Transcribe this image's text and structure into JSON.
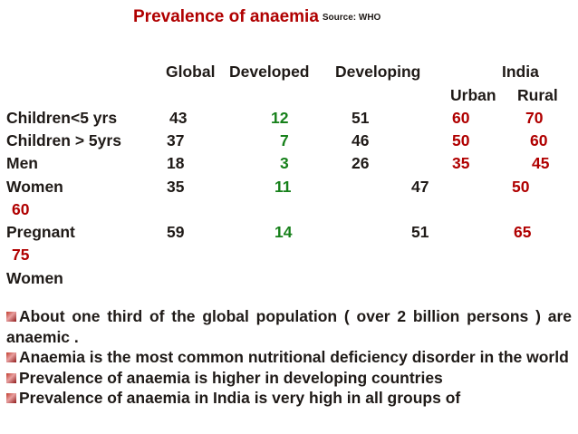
{
  "title": {
    "text": "Prevalence of anaemia",
    "source": "Source: WHO"
  },
  "headers": {
    "global": "Global",
    "developed": "Developed",
    "developing": "Developing",
    "india": "India",
    "urban": "Urban",
    "rural": "Rural"
  },
  "rows": [
    {
      "label": "Children<5 yrs",
      "global": "43",
      "developed": "12",
      "developing": "51",
      "urban": "60",
      "rural": "70"
    },
    {
      "label": "Children > 5yrs",
      "global": "37",
      "developed": "7",
      "developing": "46",
      "urban": "50",
      "rural": "60"
    },
    {
      "label": "Men",
      "global": "18",
      "developed": "3",
      "developing": "26",
      "urban": "35",
      "rural": "45"
    },
    {
      "label": "Women",
      "global": "35",
      "developed": "11",
      "developing": "47",
      "urban": "50",
      "rural": "60"
    },
    {
      "label": "Pregnant",
      "label2": "Women",
      "global": "59",
      "developed": "14",
      "developing": "51",
      "urban": "65",
      "rural": "75"
    }
  ],
  "bullets": [
    "About one third of the global population ( over 2 billion persons ) are anaemic .",
    "Anaemia is the most common nutritional deficiency disorder in the world",
    "Prevalence of anaemia is  higher in developing countries",
    "Prevalence of anaemia in India  is very high in all  groups  of"
  ],
  "colors": {
    "title": "#b00000",
    "developed": "#16801a",
    "india": "#b00000",
    "text": "#1f1a17"
  }
}
